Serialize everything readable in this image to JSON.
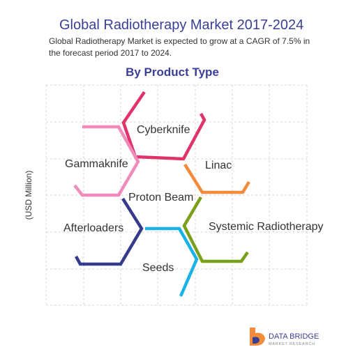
{
  "header": {
    "title": "Global Radiotherapy Market 2017-2024",
    "subtitle": [
      "Global Radiotherapy Market is expected to grow at a CAGR of 7.5% in",
      "the forecast period 2017 to 2024."
    ],
    "section": "By Product Type"
  },
  "axis_label": "(USD Million)",
  "nodes": [
    {
      "label": "Cyberknife"
    },
    {
      "label": "Gammaknife"
    },
    {
      "label": "Linac"
    },
    {
      "label": "Proton Beam"
    },
    {
      "label": "Afterloaders"
    },
    {
      "label": "Systemic Radiotherapy"
    },
    {
      "label": "Seeds"
    }
  ],
  "logo": {
    "name": "DATA BRIDGE",
    "tagline": "MARKET RESEARCH"
  }
}
